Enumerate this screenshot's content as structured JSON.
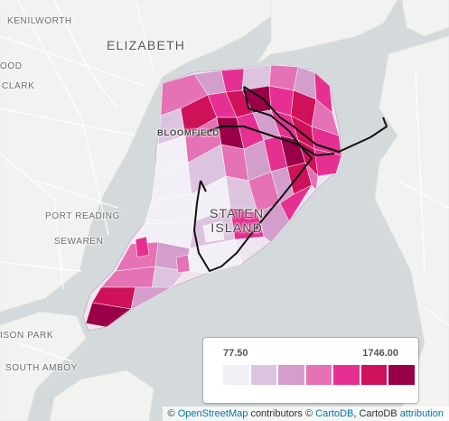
{
  "places": {
    "kenilworth": "KENILWORTH",
    "elizabeth": "ELIZABETH",
    "ood": "OOD",
    "clark": "CLARK",
    "bloomfield": "BLOOMFIELD",
    "port_reading": "PORT READING",
    "sewaren": "SEWAREN",
    "ison_park": "ISON PARK",
    "south_amboy": "SOUTH AMBOY",
    "staten_island_1": "STATEN",
    "staten_island_2": "ISLAND"
  },
  "legend": {
    "min": "77.50",
    "max": "1746.00",
    "colors": [
      "#f3eff6",
      "#dcc4df",
      "#d39ecb",
      "#e472b4",
      "#e53092",
      "#ce1159",
      "#990048"
    ]
  },
  "attribution": {
    "copy1": "©",
    "osm": "OpenStreetMap",
    "contributors": "contributors ©",
    "carto": "CartoDB",
    "carto2": ", CartoDB",
    "attr": "attribution"
  }
}
